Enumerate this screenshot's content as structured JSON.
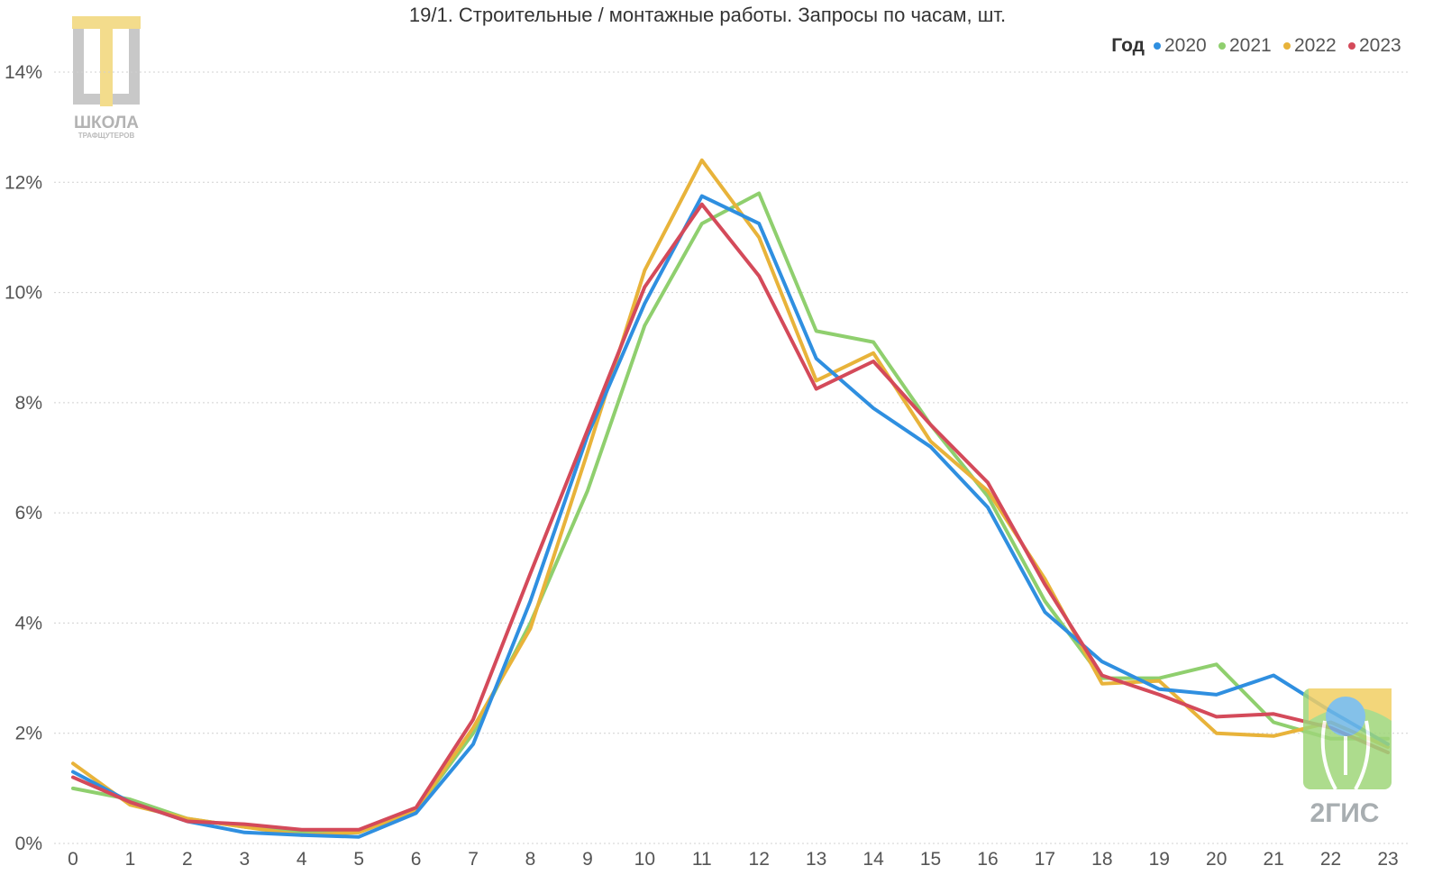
{
  "chart_data": {
    "type": "line",
    "title": "19/1. Строительные / монтажные работы. Запросы по часам, шт.",
    "xlabel": "",
    "ylabel": "",
    "x": [
      0,
      1,
      2,
      3,
      4,
      5,
      6,
      7,
      8,
      9,
      10,
      11,
      12,
      13,
      14,
      15,
      16,
      17,
      18,
      19,
      20,
      21,
      22,
      23
    ],
    "xticks": [
      "0",
      "1",
      "2",
      "3",
      "4",
      "5",
      "6",
      "7",
      "8",
      "9",
      "10",
      "11",
      "12",
      "13",
      "14",
      "15",
      "16",
      "17",
      "18",
      "19",
      "20",
      "21",
      "22",
      "23"
    ],
    "yticks": [
      "0%",
      "2%",
      "4%",
      "6%",
      "8%",
      "10%",
      "12%",
      "14%"
    ],
    "ylim": [
      0,
      14
    ],
    "grid": true,
    "legend": {
      "title": "Год",
      "position": "top-right"
    },
    "series": [
      {
        "name": "2020",
        "color": "#2f8fe0",
        "values": [
          1.3,
          0.75,
          0.4,
          0.2,
          0.15,
          0.12,
          0.55,
          1.8,
          4.4,
          7.4,
          9.8,
          11.75,
          11.25,
          8.8,
          7.9,
          7.2,
          6.1,
          4.2,
          3.3,
          2.8,
          2.7,
          3.05,
          2.4,
          1.8
        ]
      },
      {
        "name": "2021",
        "color": "#8fcf6e",
        "values": [
          1.0,
          0.8,
          0.45,
          0.3,
          0.2,
          0.2,
          0.6,
          2.0,
          4.0,
          6.4,
          9.4,
          11.25,
          11.8,
          9.3,
          9.1,
          7.6,
          6.3,
          4.4,
          3.0,
          3.0,
          3.25,
          2.2,
          1.9,
          1.9
        ]
      },
      {
        "name": "2022",
        "color": "#e8b33a",
        "values": [
          1.45,
          0.7,
          0.45,
          0.3,
          0.15,
          0.2,
          0.6,
          2.1,
          3.9,
          7.1,
          10.4,
          12.4,
          11.0,
          8.4,
          8.9,
          7.3,
          6.4,
          4.8,
          2.9,
          2.95,
          2.0,
          1.95,
          2.2,
          1.75
        ]
      },
      {
        "name": "2023",
        "color": "#d44a5a",
        "values": [
          1.2,
          0.75,
          0.4,
          0.35,
          0.25,
          0.25,
          0.65,
          2.25,
          4.9,
          7.5,
          10.1,
          11.6,
          10.3,
          8.25,
          8.75,
          7.6,
          6.55,
          4.7,
          3.05,
          2.7,
          2.3,
          2.35,
          2.1,
          1.65
        ]
      }
    ]
  },
  "logos": {
    "school": {
      "line1": "ШКОЛА",
      "line2": "ТРАФЩУТЕРОВ"
    },
    "twogis": {
      "text": "2ГИС"
    }
  }
}
